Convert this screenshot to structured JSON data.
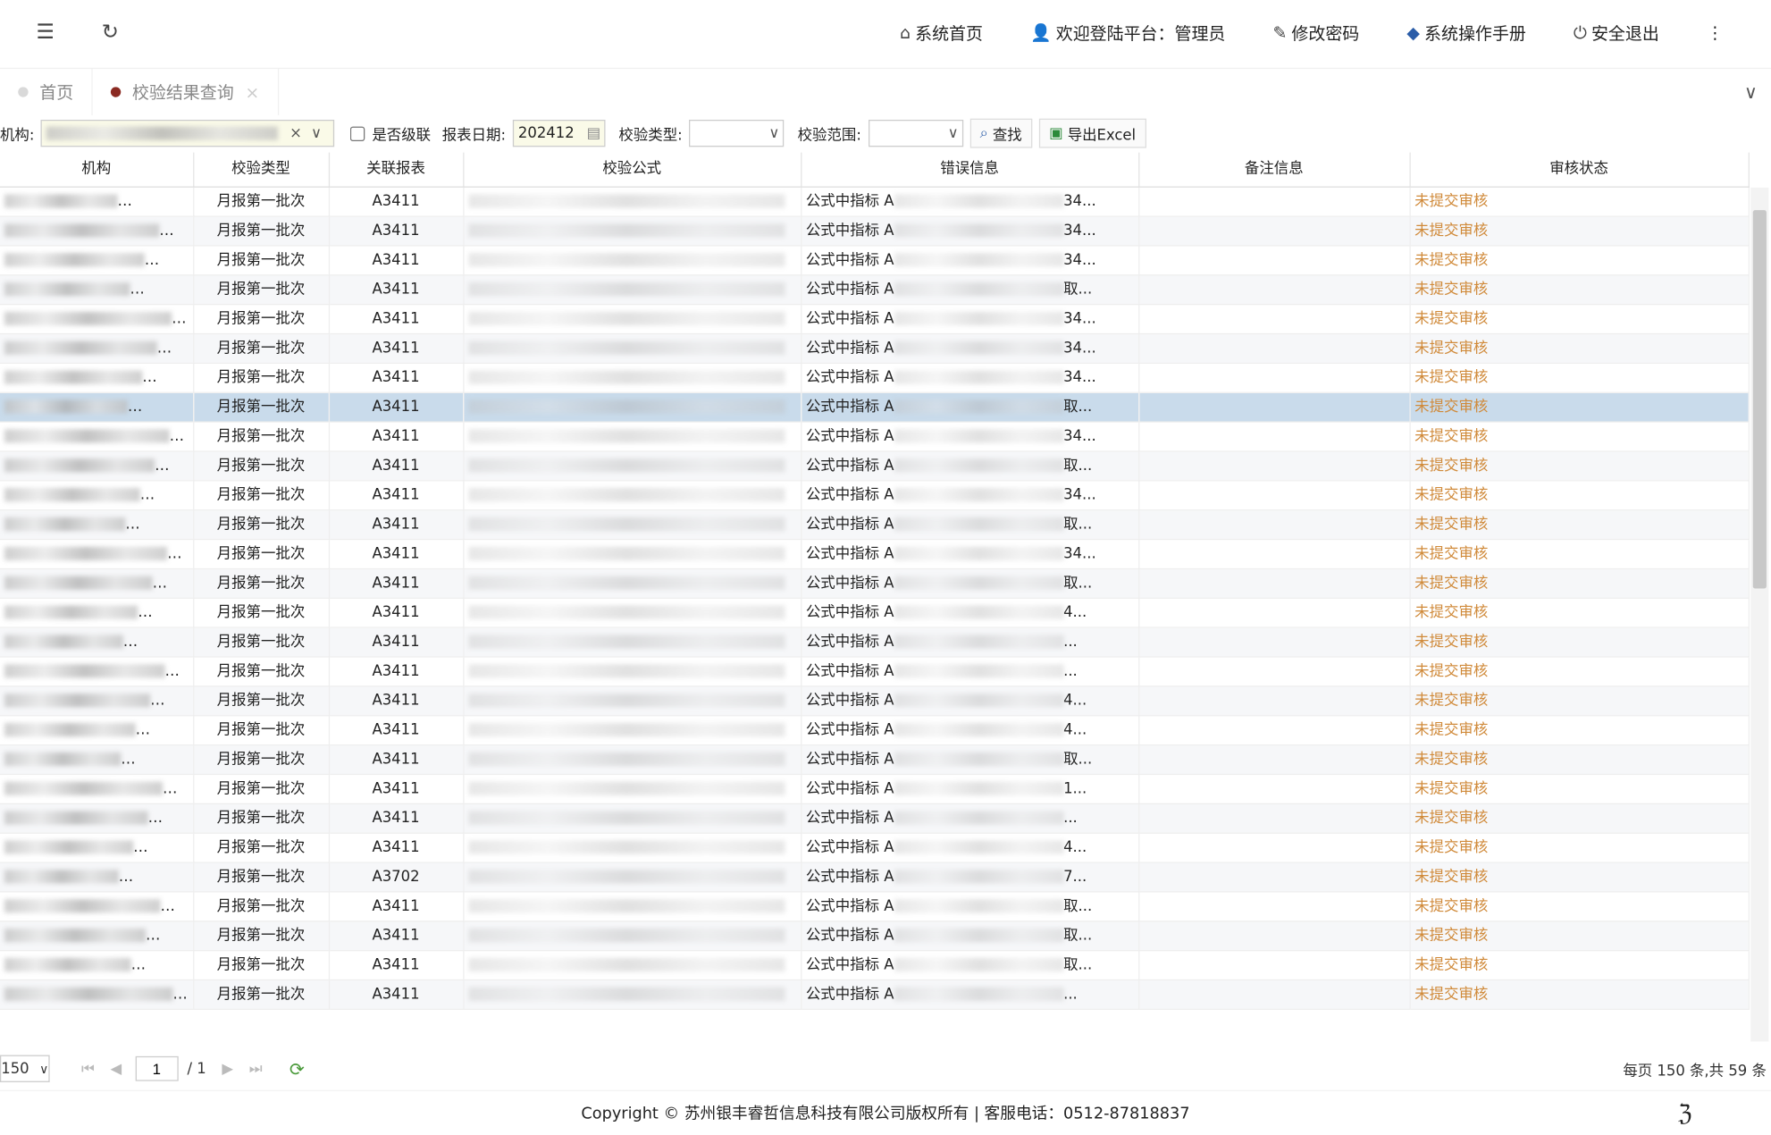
{
  "header": {
    "nav": [
      {
        "icon": "home-icon",
        "label": "系统首页"
      },
      {
        "icon": "user-icon",
        "label": "欢迎登陆平台：管理员"
      },
      {
        "icon": "pencil-icon",
        "label": "修改密码"
      },
      {
        "icon": "manual-icon",
        "label": "系统操作手册"
      },
      {
        "icon": "power-icon",
        "label": "安全退出"
      }
    ]
  },
  "tabs": [
    {
      "label": "首页",
      "dot": "#d9d9d9"
    },
    {
      "label": "校验结果查询",
      "dot": "#8b2a22",
      "close": "×"
    }
  ],
  "filters": {
    "org_label": "机构:",
    "cascade_label": "是否级联",
    "date_label": "报表日期:",
    "date_value": "202412",
    "type_label": "校验类型:",
    "scope_label": "校验范围:",
    "search": "查找",
    "export": "导出Excel"
  },
  "table": {
    "columns": [
      "机构",
      "校验类型",
      "关联报表",
      "校验公式",
      "错误信息",
      "备注信息",
      "审核状态"
    ],
    "rows": [
      {
        "type": "月报第一批次",
        "report": "A3411",
        "err": "公式中指标 A",
        "tail": "34...",
        "status": "未提交审核"
      },
      {
        "type": "月报第一批次",
        "report": "A3411",
        "err": "公式中指标 A",
        "tail": "34...",
        "status": "未提交审核"
      },
      {
        "type": "月报第一批次",
        "report": "A3411",
        "err": "公式中指标 A",
        "tail": "34...",
        "status": "未提交审核"
      },
      {
        "type": "月报第一批次",
        "report": "A3411",
        "err": "公式中指标 A",
        "tail": "取...",
        "status": "未提交审核"
      },
      {
        "type": "月报第一批次",
        "report": "A3411",
        "err": "公式中指标 A",
        "tail": "34...",
        "status": "未提交审核"
      },
      {
        "type": "月报第一批次",
        "report": "A3411",
        "err": "公式中指标 A",
        "tail": "34...",
        "status": "未提交审核"
      },
      {
        "type": "月报第一批次",
        "report": "A3411",
        "err": "公式中指标 A",
        "tail": "34...",
        "status": "未提交审核"
      },
      {
        "type": "月报第一批次",
        "report": "A3411",
        "err": "公式中指标 A",
        "tail": "取...",
        "status": "未提交审核"
      },
      {
        "type": "月报第一批次",
        "report": "A3411",
        "err": "公式中指标 A",
        "tail": "34...",
        "status": "未提交审核"
      },
      {
        "type": "月报第一批次",
        "report": "A3411",
        "err": "公式中指标 A",
        "tail": "取...",
        "status": "未提交审核"
      },
      {
        "type": "月报第一批次",
        "report": "A3411",
        "err": "公式中指标 A",
        "tail": "34...",
        "status": "未提交审核"
      },
      {
        "type": "月报第一批次",
        "report": "A3411",
        "err": "公式中指标 A",
        "tail": "取...",
        "status": "未提交审核"
      },
      {
        "type": "月报第一批次",
        "report": "A3411",
        "err": "公式中指标 A",
        "tail": "34...",
        "status": "未提交审核"
      },
      {
        "type": "月报第一批次",
        "report": "A3411",
        "err": "公式中指标 A",
        "tail": "取...",
        "status": "未提交审核"
      },
      {
        "type": "月报第一批次",
        "report": "A3411",
        "err": "公式中指标 A",
        "tail": "4...",
        "status": "未提交审核"
      },
      {
        "type": "月报第一批次",
        "report": "A3411",
        "err": "公式中指标 A",
        "tail": "...",
        "status": "未提交审核"
      },
      {
        "type": "月报第一批次",
        "report": "A3411",
        "err": "公式中指标 A",
        "tail": "...",
        "status": "未提交审核"
      },
      {
        "type": "月报第一批次",
        "report": "A3411",
        "err": "公式中指标 A",
        "tail": "4...",
        "status": "未提交审核"
      },
      {
        "type": "月报第一批次",
        "report": "A3411",
        "err": "公式中指标 A",
        "tail": "4...",
        "status": "未提交审核"
      },
      {
        "type": "月报第一批次",
        "report": "A3411",
        "err": "公式中指标 A",
        "tail": "取...",
        "status": "未提交审核"
      },
      {
        "type": "月报第一批次",
        "report": "A3411",
        "err": "公式中指标 A",
        "tail": "1...",
        "status": "未提交审核"
      },
      {
        "type": "月报第一批次",
        "report": "A3411",
        "err": "公式中指标 A",
        "tail": "...",
        "status": "未提交审核"
      },
      {
        "type": "月报第一批次",
        "report": "A3411",
        "err": "公式中指标 A",
        "tail": "4...",
        "status": "未提交审核"
      },
      {
        "type": "月报第一批次",
        "report": "A3702",
        "err": "公式中指标 A",
        "tail": "7...",
        "status": "未提交审核"
      },
      {
        "type": "月报第一批次",
        "report": "A3411",
        "err": "公式中指标 A",
        "tail": "取...",
        "status": "未提交审核"
      },
      {
        "type": "月报第一批次",
        "report": "A3411",
        "err": "公式中指标 A",
        "tail": "取...",
        "status": "未提交审核"
      },
      {
        "type": "月报第一批次",
        "report": "A3411",
        "err": "公式中指标 A",
        "tail": "取...",
        "status": "未提交审核"
      },
      {
        "type": "月报第一批次",
        "report": "A3411",
        "err": "公式中指标 A",
        "tail": "...",
        "status": "未提交审核"
      }
    ]
  },
  "pager": {
    "page_size": "150",
    "page": "1",
    "total_pages": "/ 1",
    "summary": "每页 150 条,共 59 条"
  },
  "footer": {
    "copyright": "Copyright © 苏州银丰睿哲信息科技有限公司版权所有 | 客服电话：0512-87818837"
  },
  "colors": {
    "status": "#d08a3a",
    "selected_row": "#c9dbeb"
  }
}
